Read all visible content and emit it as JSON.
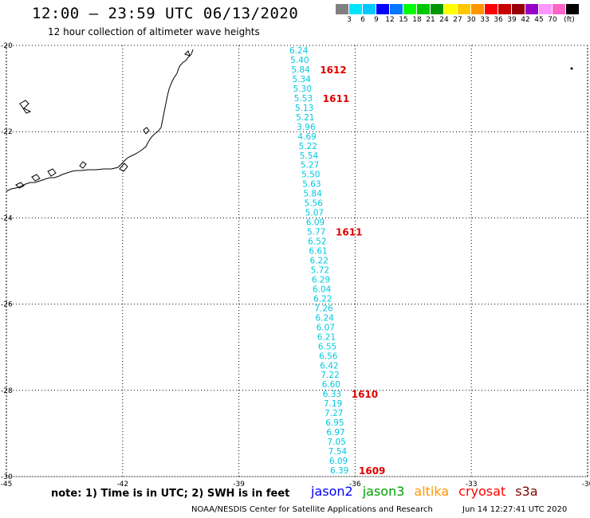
{
  "title": "12:00 – 23:59 UTC 06/13/2020",
  "subtitle": "12 hour collection of altimeter wave heights",
  "legend": {
    "colors": [
      "#808080",
      "#00e5ff",
      "#00c8ff",
      "#0000ff",
      "#0078ff",
      "#00ff00",
      "#00c800",
      "#009600",
      "#ffff00",
      "#ffc800",
      "#ff9600",
      "#ff0000",
      "#c80000",
      "#960000",
      "#9600c8",
      "#ff96ff",
      "#ff64c8",
      "#000000"
    ],
    "labels": [
      "3",
      "6",
      "9",
      "12",
      "15",
      "18",
      "21",
      "24",
      "27",
      "30",
      "33",
      "36",
      "39",
      "42",
      "45",
      "70",
      "(ft)"
    ]
  },
  "axes": {
    "lat_ticks": [
      "-20",
      "-22",
      "-24",
      "-26",
      "-28",
      "-30"
    ],
    "lon_ticks": [
      "-45",
      "-42",
      "-39",
      "-36",
      "-33",
      "-30"
    ]
  },
  "track": {
    "color": "#00c8e0",
    "swh_values": [
      "6.24",
      "5.40",
      "5.84",
      "5.34",
      "5.30",
      "5.53",
      "5.13",
      "5.21",
      "3.96",
      "4.69",
      "5.22",
      "5.54",
      "5.27",
      "5.50",
      "5.63",
      "5.84",
      "5.56",
      "5.07",
      "6.09",
      "5.77",
      "6.52",
      "6.61",
      "6.22",
      "5.72",
      "6.29",
      "6.04",
      "6.22",
      "7.26",
      "6.24",
      "6.07",
      "6.21",
      "6.55",
      "6.56",
      "6.42",
      "7.22",
      "6.60",
      "6.33",
      "7.19",
      "7.27",
      "6.95",
      "6.97",
      "7.05",
      "7.54",
      "6.09",
      "6.39"
    ]
  },
  "time_labels": {
    "color": "#e00000",
    "items": [
      "1612",
      "1611",
      "1611",
      "1610",
      "1609"
    ]
  },
  "note": "note: 1) Time is in UTC; 2) SWH is in feet",
  "missions": [
    {
      "name": "jason2",
      "color": "#0000ff"
    },
    {
      "name": "jason3",
      "color": "#00a000"
    },
    {
      "name": "altika",
      "color": "#ff9600"
    },
    {
      "name": "cryosat",
      "color": "#ff0000"
    },
    {
      "name": "s3a",
      "color": "#800000"
    }
  ],
  "credit": "NOAA/NESDIS Center for Satellite Applications and Research",
  "timestamp": "Jun 14 12:27:41 UTC 2020"
}
